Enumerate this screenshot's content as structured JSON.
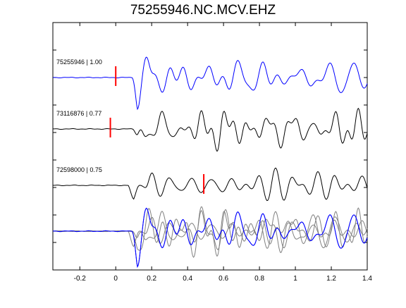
{
  "chart_data": {
    "type": "line",
    "title": "75255946.NC.MCV.EHZ",
    "xlabel": "",
    "ylabel": "",
    "xlim": [
      -0.35,
      1.4
    ],
    "x_ticks": [
      -0.2,
      0,
      0.2,
      0.4,
      0.6,
      0.8,
      1,
      1.2,
      1.4
    ],
    "x_tick_labels": [
      "-0.2",
      "0",
      "0.2",
      "0.4",
      "0.6",
      "0.8",
      "1",
      "1.2",
      "1.4"
    ],
    "grid": false,
    "colors": {
      "reference": "#0000ff",
      "other": "#000000",
      "overlay": "#808080",
      "pick": "#ff0000"
    },
    "onset": 0.09,
    "traces": [
      {
        "name": "75255946 | 1.00",
        "id": "75255946",
        "cc": "1.00",
        "pick_time": 0.0,
        "shift": 0.0,
        "color": "#0000ff"
      },
      {
        "name": "73116876 | 0.77",
        "id": "73116876",
        "cc": "0.77",
        "pick_time": -0.03,
        "shift": 0.0,
        "color": "#000000"
      },
      {
        "name": "72598000 | 0.75",
        "id": "72598000",
        "cc": "0.75",
        "pick_time": 0.49,
        "shift": -0.02,
        "color": "#000000"
      }
    ]
  }
}
